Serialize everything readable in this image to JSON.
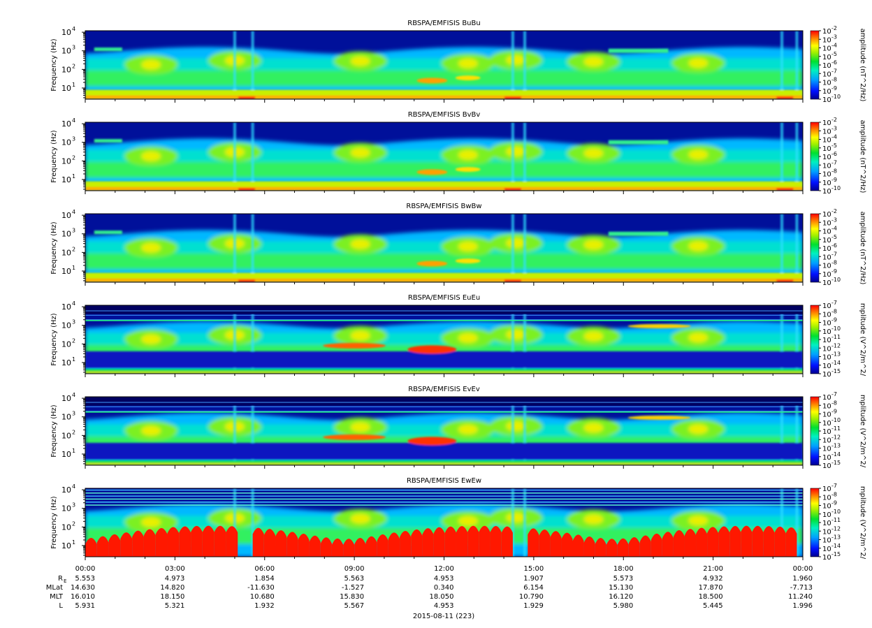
{
  "figure": {
    "date_label": "2015-08-11 (223)",
    "ylabel": "Frequency (Hz)",
    "ytick_base": "10",
    "ytick_exponents": [
      "1",
      "2",
      "3",
      "4"
    ],
    "colors": {
      "low": "#0000a0",
      "mid": "#00e050",
      "high": "#ff2000"
    }
  },
  "chart_data": [
    {
      "type": "heatmap",
      "title": "RBSPA/EMFISIS  BuBu",
      "colorbar_label": "amplitude (nT^2/Hz)",
      "cb_max_exp": -2,
      "cb_min_exp": -10,
      "flavor": "B"
    },
    {
      "type": "heatmap",
      "title": "RBSPA/EMFISIS  BvBv",
      "colorbar_label": "amplitude (nT^2/Hz)",
      "cb_max_exp": -2,
      "cb_min_exp": -10,
      "flavor": "B"
    },
    {
      "type": "heatmap",
      "title": "RBSPA/EMFISIS  BwBw",
      "colorbar_label": "amplitude (nT^2/Hz)",
      "cb_max_exp": -2,
      "cb_min_exp": -10,
      "flavor": "B"
    },
    {
      "type": "heatmap",
      "title": "RBSPA/EMFISIS  EuEu",
      "colorbar_label": "mplitude (V^2/m^2/",
      "cb_max_exp": -7,
      "cb_min_exp": -15,
      "flavor": "E"
    },
    {
      "type": "heatmap",
      "title": "RBSPA/EMFISIS  EvEv",
      "colorbar_label": "mplitude (V^2/m^2/",
      "cb_max_exp": -7,
      "cb_min_exp": -15,
      "flavor": "E"
    },
    {
      "type": "heatmap",
      "title": "RBSPA/EMFISIS  EwEw",
      "colorbar_label": "mplitude (V^2/m^2/",
      "cb_max_exp": -7,
      "cb_min_exp": -15,
      "flavor": "Ew"
    }
  ],
  "xaxis": {
    "ticks": [
      "00:00",
      "03:00",
      "06:00",
      "09:00",
      "12:00",
      "15:00",
      "18:00",
      "21:00",
      "00:00"
    ]
  },
  "ephemeris": {
    "rows": [
      {
        "label": "R",
        "sub": "E",
        "values": [
          "5.553",
          "4.973",
          "1.854",
          "5.563",
          "4.953",
          "1.907",
          "5.573",
          "4.932",
          "1.960"
        ]
      },
      {
        "label": "MLat",
        "values": [
          "14.630",
          "14.820",
          "-11.630",
          "-1.527",
          "0.340",
          "6.154",
          "15.130",
          "17.870",
          "-7.713"
        ]
      },
      {
        "label": "MLT",
        "values": [
          "16.010",
          "18.150",
          "10.680",
          "15.830",
          "18.050",
          "10.790",
          "16.120",
          "18.500",
          "11.240"
        ]
      },
      {
        "label": "L",
        "values": [
          "5.931",
          "5.321",
          "1.932",
          "5.567",
          "4.953",
          "1.929",
          "5.980",
          "5.445",
          "1.996"
        ]
      }
    ]
  }
}
